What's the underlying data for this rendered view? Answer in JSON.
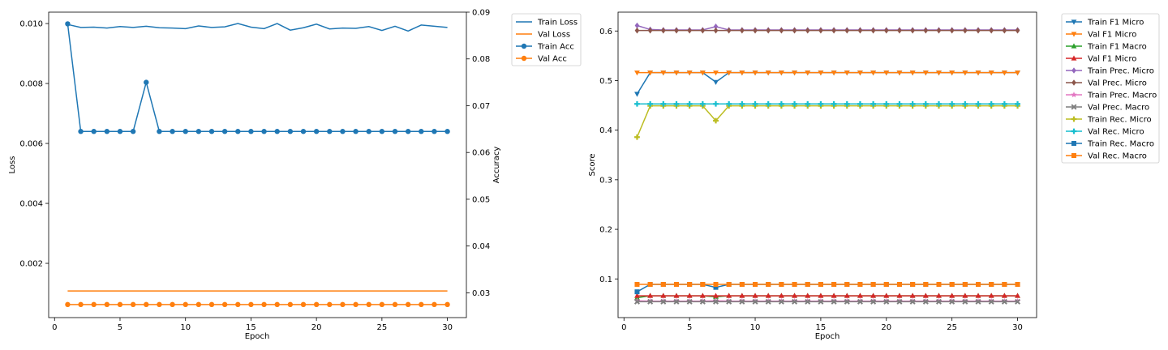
{
  "chart_data": [
    {
      "type": "line",
      "title": "",
      "xlabel": "Epoch",
      "ylabel": "Loss",
      "y2label": "Accuracy",
      "xlim": [
        -0.45,
        31.45
      ],
      "ylim": [
        0.00019,
        0.01038
      ],
      "y2lim": [
        0.0247,
        0.09
      ],
      "xticks": [
        0,
        5,
        10,
        15,
        20,
        25,
        30
      ],
      "yticks": [
        0.002,
        0.004,
        0.006,
        0.008,
        0.01
      ],
      "yticklabels": [
        "0.002",
        "0.004",
        "0.006",
        "0.008",
        "0.010"
      ],
      "y2ticks": [
        0.03,
        0.04,
        0.05,
        0.06,
        0.07,
        0.08,
        0.09
      ],
      "y2ticklabels": [
        "0.03",
        "0.04",
        "0.05",
        "0.06",
        "0.07",
        "0.08",
        "0.09"
      ],
      "legend_position": "outside-top-right",
      "x": [
        1,
        2,
        3,
        4,
        5,
        6,
        7,
        8,
        9,
        10,
        11,
        12,
        13,
        14,
        15,
        16,
        17,
        18,
        19,
        20,
        21,
        22,
        23,
        24,
        25,
        26,
        27,
        28,
        29,
        30
      ],
      "series": [
        {
          "name": "Train Loss",
          "axis": "left",
          "color": "#1f77b4",
          "marker": "none",
          "values": [
            0.00997,
            0.00987,
            0.00988,
            0.00985,
            0.0099,
            0.00987,
            0.00991,
            0.00986,
            0.00985,
            0.00983,
            0.00992,
            0.00987,
            0.00989,
            0.01,
            0.00988,
            0.00983,
            0.01,
            0.00978,
            0.00986,
            0.00998,
            0.00982,
            0.00985,
            0.00984,
            0.0099,
            0.00977,
            0.00991,
            0.00975,
            0.00995,
            0.00991,
            0.00987
          ]
        },
        {
          "name": "Val Loss",
          "axis": "left",
          "color": "#ff7f0e",
          "marker": "none",
          "values": [
            0.00108,
            0.00108,
            0.00108,
            0.00108,
            0.00108,
            0.00108,
            0.00108,
            0.00108,
            0.00108,
            0.00108,
            0.00108,
            0.00108,
            0.00108,
            0.00108,
            0.00108,
            0.00108,
            0.00108,
            0.00108,
            0.00108,
            0.00108,
            0.00108,
            0.00108,
            0.00108,
            0.00108,
            0.00108,
            0.00108,
            0.00108,
            0.00108,
            0.00108,
            0.00108
          ]
        },
        {
          "name": "Train Acc",
          "axis": "right",
          "color": "#1f77b4",
          "marker": "circle",
          "values": [
            0.0875,
            0.0645,
            0.0645,
            0.0645,
            0.0645,
            0.0645,
            0.075,
            0.0645,
            0.0645,
            0.0645,
            0.0645,
            0.0645,
            0.0645,
            0.0645,
            0.0645,
            0.0645,
            0.0645,
            0.0645,
            0.0645,
            0.0645,
            0.0645,
            0.0645,
            0.0645,
            0.0645,
            0.0645,
            0.0645,
            0.0645,
            0.0645,
            0.0645,
            0.0645
          ]
        },
        {
          "name": "Val Acc",
          "axis": "right",
          "color": "#ff7f0e",
          "marker": "circle",
          "values": [
            0.0275,
            0.0275,
            0.0275,
            0.0275,
            0.0275,
            0.0275,
            0.0275,
            0.0275,
            0.0275,
            0.0275,
            0.0275,
            0.0275,
            0.0275,
            0.0275,
            0.0275,
            0.0275,
            0.0275,
            0.0275,
            0.0275,
            0.0275,
            0.0275,
            0.0275,
            0.0275,
            0.0275,
            0.0275,
            0.0275,
            0.0275,
            0.0275,
            0.0275,
            0.0275
          ]
        }
      ]
    },
    {
      "type": "line",
      "title": "",
      "xlabel": "Epoch",
      "ylabel": "Score",
      "xlim": [
        -0.45,
        31.45
      ],
      "ylim": [
        0.022,
        0.638
      ],
      "xticks": [
        0,
        5,
        10,
        15,
        20,
        25,
        30
      ],
      "yticks": [
        0.1,
        0.2,
        0.3,
        0.4,
        0.5,
        0.6
      ],
      "yticklabels": [
        "0.1",
        "0.2",
        "0.3",
        "0.4",
        "0.5",
        "0.6"
      ],
      "legend_position": "outside-top-right",
      "x": [
        1,
        2,
        3,
        4,
        5,
        6,
        7,
        8,
        9,
        10,
        11,
        12,
        13,
        14,
        15,
        16,
        17,
        18,
        19,
        20,
        21,
        22,
        23,
        24,
        25,
        26,
        27,
        28,
        29,
        30
      ],
      "series": [
        {
          "name": "Train F1 Micro",
          "color": "#1f77b4",
          "marker": "tri-down",
          "values": [
            0.473,
            0.516,
            0.516,
            0.516,
            0.516,
            0.516,
            0.497,
            0.516,
            0.516,
            0.516,
            0.516,
            0.516,
            0.516,
            0.516,
            0.516,
            0.516,
            0.516,
            0.516,
            0.516,
            0.516,
            0.516,
            0.516,
            0.516,
            0.516,
            0.516,
            0.516,
            0.516,
            0.516,
            0.516,
            0.516
          ]
        },
        {
          "name": "Val F1 Micro",
          "color": "#ff7f0e",
          "marker": "tri-down",
          "values": [
            0.516,
            0.516,
            0.516,
            0.516,
            0.516,
            0.516,
            0.516,
            0.516,
            0.516,
            0.516,
            0.516,
            0.516,
            0.516,
            0.516,
            0.516,
            0.516,
            0.516,
            0.516,
            0.516,
            0.516,
            0.516,
            0.516,
            0.516,
            0.516,
            0.516,
            0.516,
            0.516,
            0.516,
            0.516,
            0.516
          ]
        },
        {
          "name": "Train F1 Macro",
          "color": "#2ca02c",
          "marker": "tri-up",
          "values": [
            0.062,
            0.066,
            0.066,
            0.066,
            0.066,
            0.066,
            0.064,
            0.066,
            0.066,
            0.066,
            0.066,
            0.066,
            0.066,
            0.066,
            0.066,
            0.066,
            0.066,
            0.066,
            0.066,
            0.066,
            0.066,
            0.066,
            0.066,
            0.066,
            0.066,
            0.066,
            0.066,
            0.066,
            0.066,
            0.066
          ]
        },
        {
          "name": "Val F1 Micro",
          "color": "#d62728",
          "marker": "tri-up",
          "values": [
            0.066,
            0.066,
            0.066,
            0.066,
            0.066,
            0.066,
            0.066,
            0.066,
            0.066,
            0.066,
            0.066,
            0.066,
            0.066,
            0.066,
            0.066,
            0.066,
            0.066,
            0.066,
            0.066,
            0.066,
            0.066,
            0.066,
            0.066,
            0.066,
            0.066,
            0.066,
            0.066,
            0.066,
            0.066,
            0.066
          ]
        },
        {
          "name": "Train Prec. Micro",
          "color": "#9467bd",
          "marker": "diamond",
          "values": [
            0.611,
            0.603,
            0.602,
            0.602,
            0.602,
            0.602,
            0.609,
            0.602,
            0.602,
            0.602,
            0.602,
            0.602,
            0.602,
            0.602,
            0.602,
            0.602,
            0.602,
            0.602,
            0.602,
            0.602,
            0.602,
            0.602,
            0.602,
            0.602,
            0.602,
            0.602,
            0.602,
            0.602,
            0.602,
            0.602
          ]
        },
        {
          "name": "Val Prec. Micro",
          "color": "#8c564b",
          "marker": "diamond",
          "values": [
            0.601,
            0.601,
            0.601,
            0.601,
            0.601,
            0.601,
            0.601,
            0.601,
            0.601,
            0.601,
            0.601,
            0.601,
            0.601,
            0.601,
            0.601,
            0.601,
            0.601,
            0.601,
            0.601,
            0.601,
            0.601,
            0.601,
            0.601,
            0.601,
            0.601,
            0.601,
            0.601,
            0.601,
            0.601,
            0.601
          ]
        },
        {
          "name": "Train Prec. Macro",
          "color": "#e377c2",
          "marker": "star",
          "values": [
            0.056,
            0.055,
            0.055,
            0.055,
            0.055,
            0.055,
            0.056,
            0.055,
            0.055,
            0.055,
            0.055,
            0.055,
            0.055,
            0.055,
            0.055,
            0.055,
            0.055,
            0.055,
            0.055,
            0.055,
            0.055,
            0.055,
            0.055,
            0.055,
            0.055,
            0.055,
            0.055,
            0.055,
            0.055,
            0.055
          ]
        },
        {
          "name": "Val Prec. Macro",
          "color": "#7f7f7f",
          "marker": "x",
          "values": [
            0.054,
            0.054,
            0.054,
            0.054,
            0.054,
            0.054,
            0.054,
            0.054,
            0.054,
            0.054,
            0.054,
            0.054,
            0.054,
            0.054,
            0.054,
            0.054,
            0.054,
            0.054,
            0.054,
            0.054,
            0.054,
            0.054,
            0.054,
            0.054,
            0.054,
            0.054,
            0.054,
            0.054,
            0.054,
            0.054
          ]
        },
        {
          "name": "Train Rec. Micro",
          "color": "#bcbd22",
          "marker": "plus",
          "values": [
            0.386,
            0.449,
            0.449,
            0.449,
            0.449,
            0.449,
            0.419,
            0.449,
            0.449,
            0.449,
            0.449,
            0.449,
            0.449,
            0.449,
            0.449,
            0.449,
            0.449,
            0.449,
            0.449,
            0.449,
            0.449,
            0.449,
            0.449,
            0.449,
            0.449,
            0.449,
            0.449,
            0.449,
            0.449,
            0.449
          ]
        },
        {
          "name": "Val Rec. Micro",
          "color": "#17becf",
          "marker": "plus",
          "values": [
            0.453,
            0.453,
            0.453,
            0.453,
            0.453,
            0.453,
            0.453,
            0.453,
            0.453,
            0.453,
            0.453,
            0.453,
            0.453,
            0.453,
            0.453,
            0.453,
            0.453,
            0.453,
            0.453,
            0.453,
            0.453,
            0.453,
            0.453,
            0.453,
            0.453,
            0.453,
            0.453,
            0.453,
            0.453,
            0.453
          ]
        },
        {
          "name": "Train Rec. Macro",
          "color": "#1f77b4",
          "marker": "square",
          "values": [
            0.074,
            0.089,
            0.089,
            0.089,
            0.089,
            0.089,
            0.083,
            0.089,
            0.089,
            0.089,
            0.089,
            0.089,
            0.089,
            0.089,
            0.089,
            0.089,
            0.089,
            0.089,
            0.089,
            0.089,
            0.089,
            0.089,
            0.089,
            0.089,
            0.089,
            0.089,
            0.089,
            0.089,
            0.089,
            0.089
          ]
        },
        {
          "name": "Val Rec. Macro",
          "color": "#ff7f0e",
          "marker": "square",
          "values": [
            0.089,
            0.089,
            0.089,
            0.089,
            0.089,
            0.089,
            0.089,
            0.089,
            0.089,
            0.089,
            0.089,
            0.089,
            0.089,
            0.089,
            0.089,
            0.089,
            0.089,
            0.089,
            0.089,
            0.089,
            0.089,
            0.089,
            0.089,
            0.089,
            0.089,
            0.089,
            0.089,
            0.089,
            0.089,
            0.089
          ]
        }
      ]
    }
  ]
}
